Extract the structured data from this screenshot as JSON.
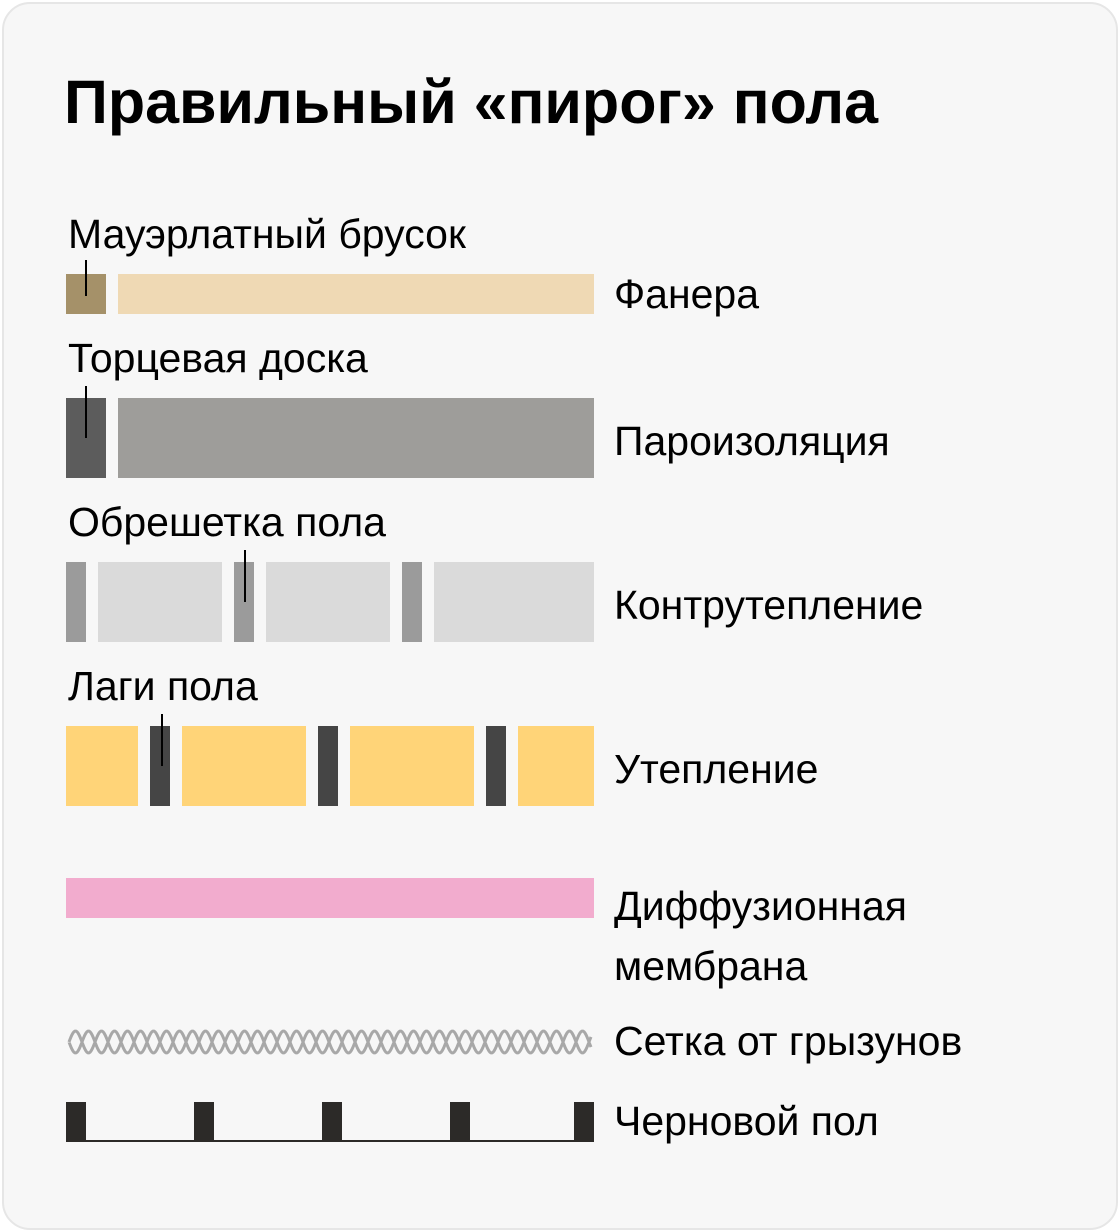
{
  "title": "Правильный «пирог» пола",
  "colors": {
    "background": "#f7f7f7",
    "plywood": "#efd9b4",
    "wall_plate": "#a59169",
    "vapor_barrier": "#9e9d9a",
    "end_board": "#5c5c5c",
    "counter_insulation": "#dadada",
    "lathing": "#9b9b9b",
    "insulation": "#ffd478",
    "joists": "#454545",
    "membrane": "#f2acce",
    "mesh": "#a8a8a8",
    "subfloor": "#2c2a28"
  },
  "layers": [
    {
      "name": "Фанера",
      "callout": "Мауэрлатный брусок"
    },
    {
      "name": "Пароизоляция",
      "callout": "Торцевая доска"
    },
    {
      "name": "Контрутепление",
      "callout": "Обрешетка пола"
    },
    {
      "name": "Утепление",
      "callout": "Лаги пола"
    },
    {
      "name": "Диффузионная мембрана"
    },
    {
      "name": "Сетка от грызунов"
    },
    {
      "name": "Черновой пол"
    }
  ]
}
